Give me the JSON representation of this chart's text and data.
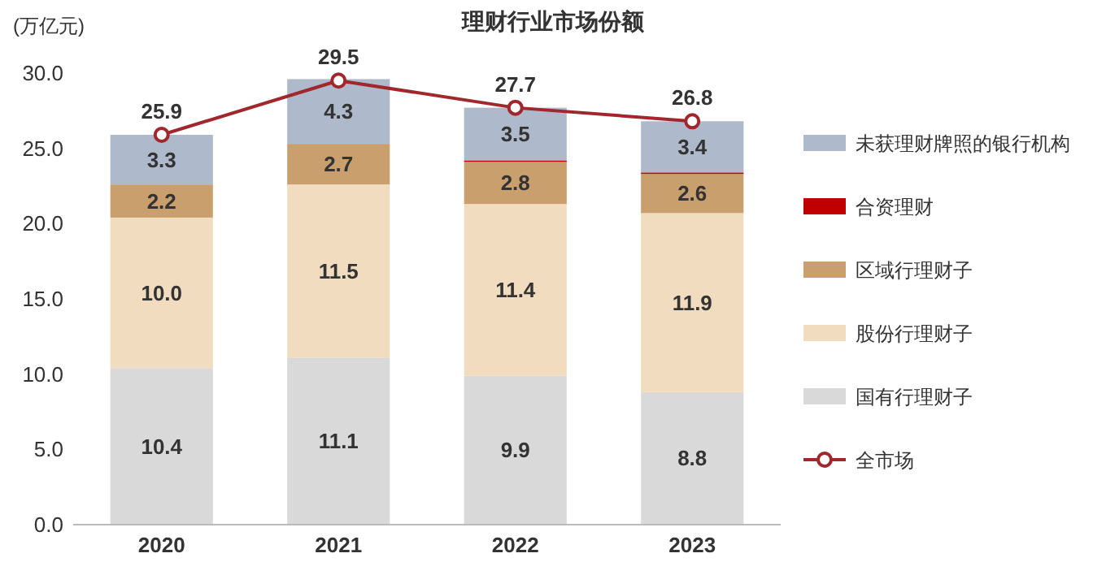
{
  "chart_data": {
    "type": "bar",
    "title": "理财行业市场份额",
    "ylabel": "(万亿元)",
    "categories": [
      "2020",
      "2021",
      "2022",
      "2023"
    ],
    "stacked": true,
    "legend": "right",
    "grid": false,
    "ylim": [
      0,
      30
    ],
    "yticks": [
      {
        "value": 0,
        "label": "0.0"
      },
      {
        "value": 5,
        "label": "5.0"
      },
      {
        "value": 10,
        "label": "10.0"
      },
      {
        "value": 15,
        "label": "15.0"
      },
      {
        "value": 20,
        "label": "20.0"
      },
      {
        "value": 25,
        "label": "25.0"
      },
      {
        "value": 30,
        "label": "30.0"
      }
    ],
    "series": [
      {
        "name": "国有行理财子",
        "color": "#d9d9d9",
        "values": [
          10.4,
          11.1,
          9.9,
          8.8
        ],
        "value_labels": [
          "10.4",
          "11.1",
          "9.9",
          "8.8"
        ]
      },
      {
        "name": "股份行理财子",
        "color": "#f2dcbf",
        "values": [
          10.0,
          11.5,
          11.4,
          11.9
        ],
        "value_labels": [
          "10.0",
          "11.5",
          "11.4",
          "11.9"
        ]
      },
      {
        "name": "区域行理财子",
        "color": "#c9a06d",
        "values": [
          2.2,
          2.7,
          2.8,
          2.6
        ],
        "value_labels": [
          "2.2",
          "2.7",
          "2.8",
          "2.6"
        ]
      },
      {
        "name": "合资理财",
        "color": "#c00000",
        "values": [
          0,
          0,
          0.1,
          0.1
        ],
        "value_labels": [
          null,
          null,
          null,
          null
        ]
      },
      {
        "name": "未获理财牌照的银行机构",
        "color": "#aeb9cc",
        "values": [
          3.3,
          4.3,
          3.5,
          3.4
        ],
        "value_labels": [
          "3.3",
          "4.3",
          "3.5",
          "3.4"
        ]
      },
      {
        "name": "全市场",
        "type": "line",
        "color": "#a0282d",
        "marker": "circle",
        "line_style": "solid",
        "values": [
          25.9,
          29.5,
          27.7,
          26.8
        ],
        "value_labels": [
          "25.9",
          "29.5",
          "27.7",
          "26.8"
        ]
      }
    ]
  }
}
